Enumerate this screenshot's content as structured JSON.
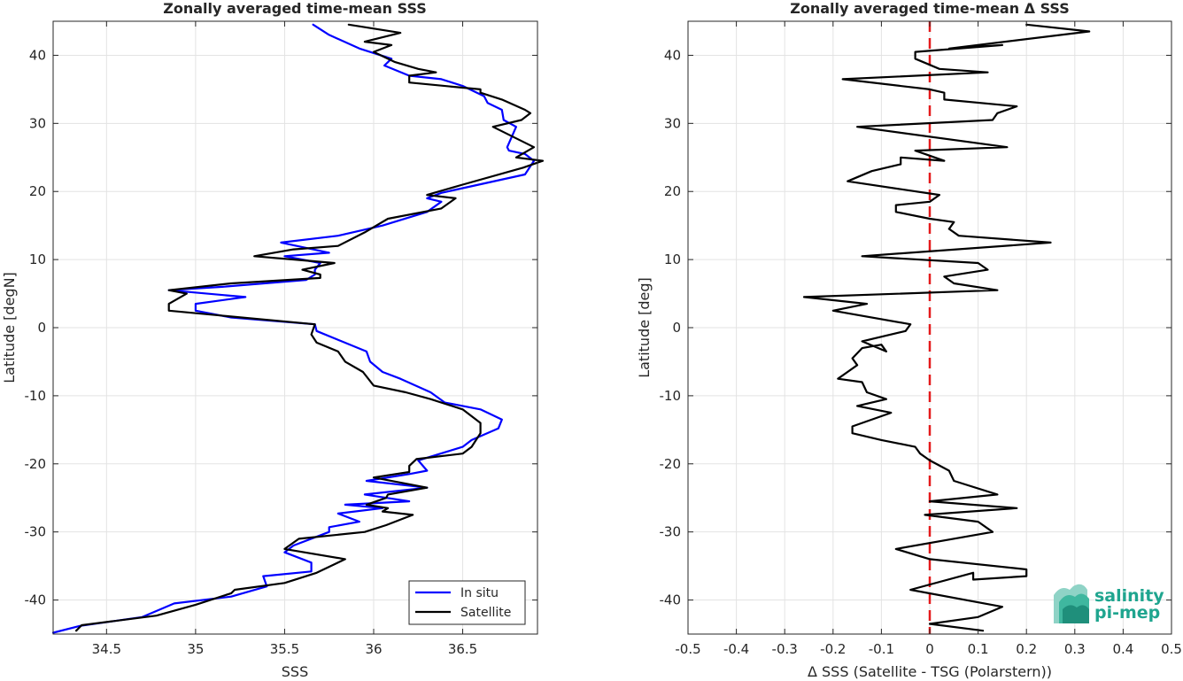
{
  "chart_data": [
    {
      "type": "line",
      "title": "Zonally averaged time-mean SSS",
      "xlabel": "SSS",
      "ylabel": "Latitude [degN]",
      "xlim": [
        34.2,
        36.92
      ],
      "ylim": [
        -45,
        45
      ],
      "xticks": [
        34.5,
        35,
        35.5,
        36,
        36.5
      ],
      "xtick_labels": [
        "34.5",
        "35",
        "35.5",
        "36",
        "36.5"
      ],
      "yticks": [
        -40,
        -30,
        -20,
        -10,
        0,
        10,
        20,
        30,
        40
      ],
      "ytick_labels": [
        "-40",
        "-30",
        "-20",
        "-10",
        "0",
        "10",
        "20",
        "30",
        "40"
      ],
      "grid": true,
      "legend": "bottom-right",
      "series": [
        {
          "name": "In situ",
          "color": "#0000ff",
          "points": [
            [
              34.2,
              -44.8
            ],
            [
              34.35,
              -43.8
            ],
            [
              34.7,
              -42.5
            ],
            [
              34.88,
              -40.5
            ],
            [
              35.2,
              -39.5
            ],
            [
              35.4,
              -38.0
            ],
            [
              35.38,
              -36.5
            ],
            [
              35.65,
              -35.8
            ],
            [
              35.65,
              -34.5
            ],
            [
              35.5,
              -33.0
            ],
            [
              35.55,
              -32.0
            ],
            [
              35.75,
              -30.0
            ],
            [
              35.75,
              -29.3
            ],
            [
              35.92,
              -28.5
            ],
            [
              35.8,
              -27.3
            ],
            [
              36.05,
              -26.5
            ],
            [
              35.84,
              -26.0
            ],
            [
              36.2,
              -25.5
            ],
            [
              35.95,
              -24.5
            ],
            [
              36.3,
              -23.5
            ],
            [
              35.96,
              -22.5
            ],
            [
              36.2,
              -21.5
            ],
            [
              36.3,
              -21.0
            ],
            [
              36.25,
              -19.5
            ],
            [
              36.5,
              -17.5
            ],
            [
              36.55,
              -16.5
            ],
            [
              36.7,
              -14.8
            ],
            [
              36.72,
              -13.5
            ],
            [
              36.6,
              -12.0
            ],
            [
              36.4,
              -11.0
            ],
            [
              36.32,
              -9.5
            ],
            [
              36.15,
              -7.5
            ],
            [
              36.05,
              -6.5
            ],
            [
              35.98,
              -5.0
            ],
            [
              35.96,
              -3.5
            ],
            [
              35.82,
              -2.0
            ],
            [
              35.68,
              -0.5
            ],
            [
              35.67,
              0.5
            ],
            [
              35.2,
              1.5
            ],
            [
              35.0,
              2.5
            ],
            [
              35.0,
              3.5
            ],
            [
              35.28,
              4.5
            ],
            [
              34.85,
              5.5
            ],
            [
              35.15,
              6.0
            ],
            [
              35.62,
              7.0
            ],
            [
              35.67,
              7.8
            ],
            [
              35.67,
              8.5
            ],
            [
              35.7,
              9.5
            ],
            [
              35.5,
              10.5
            ],
            [
              35.75,
              11.0
            ],
            [
              35.48,
              12.5
            ],
            [
              35.8,
              13.5
            ],
            [
              36.05,
              15.0
            ],
            [
              36.3,
              17.0
            ],
            [
              36.38,
              18.5
            ],
            [
              36.3,
              19.0
            ],
            [
              36.38,
              19.8
            ],
            [
              36.85,
              22.5
            ],
            [
              36.9,
              24.5
            ],
            [
              36.85,
              25.5
            ],
            [
              36.76,
              26.0
            ],
            [
              36.75,
              26.5
            ],
            [
              36.8,
              29.5
            ],
            [
              36.73,
              30.5
            ],
            [
              36.72,
              32.0
            ],
            [
              36.64,
              33.0
            ],
            [
              36.62,
              34.0
            ],
            [
              36.5,
              35.5
            ],
            [
              36.38,
              36.5
            ],
            [
              36.2,
              37.0
            ],
            [
              36.06,
              38.5
            ],
            [
              36.1,
              39.5
            ],
            [
              35.92,
              41.0
            ],
            [
              35.75,
              43.0
            ],
            [
              35.66,
              44.5
            ]
          ]
        },
        {
          "name": "Satellite",
          "color": "#000000",
          "points": [
            [
              34.33,
              -44.5
            ],
            [
              34.36,
              -43.7
            ],
            [
              34.78,
              -42.3
            ],
            [
              35.0,
              -40.7
            ],
            [
              35.2,
              -39.0
            ],
            [
              35.22,
              -38.5
            ],
            [
              35.5,
              -37.5
            ],
            [
              35.68,
              -36.0
            ],
            [
              35.84,
              -34.0
            ],
            [
              35.5,
              -32.5
            ],
            [
              35.58,
              -31.0
            ],
            [
              35.95,
              -30.0
            ],
            [
              36.07,
              -29.0
            ],
            [
              36.22,
              -27.5
            ],
            [
              36.05,
              -27.0
            ],
            [
              36.08,
              -26.5
            ],
            [
              35.96,
              -26.0
            ],
            [
              36.07,
              -25.0
            ],
            [
              36.08,
              -24.5
            ],
            [
              36.3,
              -23.5
            ],
            [
              36.0,
              -22.0
            ],
            [
              36.2,
              -21.2
            ],
            [
              36.2,
              -20.3
            ],
            [
              36.24,
              -19.3
            ],
            [
              36.5,
              -18.5
            ],
            [
              36.55,
              -17.5
            ],
            [
              36.6,
              -15.5
            ],
            [
              36.6,
              -14.0
            ],
            [
              36.5,
              -12.0
            ],
            [
              36.32,
              -10.5
            ],
            [
              36.18,
              -9.5
            ],
            [
              36.0,
              -8.5
            ],
            [
              35.94,
              -6.5
            ],
            [
              35.84,
              -5.0
            ],
            [
              35.8,
              -3.5
            ],
            [
              35.68,
              -2.2
            ],
            [
              35.65,
              -1.0
            ],
            [
              35.67,
              0.5
            ],
            [
              34.85,
              2.5
            ],
            [
              34.85,
              3.5
            ],
            [
              34.95,
              5.0
            ],
            [
              34.85,
              5.5
            ],
            [
              35.2,
              6.5
            ],
            [
              35.7,
              7.3
            ],
            [
              35.7,
              7.8
            ],
            [
              35.6,
              8.5
            ],
            [
              35.78,
              9.5
            ],
            [
              35.33,
              10.5
            ],
            [
              35.55,
              11.5
            ],
            [
              35.8,
              12.0
            ],
            [
              35.95,
              14.0
            ],
            [
              36.08,
              16.0
            ],
            [
              36.38,
              17.5
            ],
            [
              36.46,
              19.0
            ],
            [
              36.3,
              19.5
            ],
            [
              36.5,
              21.0
            ],
            [
              36.84,
              23.5
            ],
            [
              36.95,
              24.5
            ],
            [
              36.8,
              25.0
            ],
            [
              36.9,
              26.5
            ],
            [
              36.67,
              29.5
            ],
            [
              36.83,
              30.5
            ],
            [
              36.88,
              31.5
            ],
            [
              36.85,
              32.0
            ],
            [
              36.72,
              33.5
            ],
            [
              36.6,
              34.5
            ],
            [
              36.6,
              35.0
            ],
            [
              36.2,
              36.0
            ],
            [
              36.2,
              37.0
            ],
            [
              36.35,
              37.5
            ],
            [
              36.25,
              38.0
            ],
            [
              36.12,
              39.0
            ],
            [
              36.0,
              40.5
            ],
            [
              36.1,
              41.5
            ],
            [
              35.95,
              42.0
            ],
            [
              36.15,
              43.3
            ],
            [
              35.86,
              44.5
            ]
          ]
        }
      ]
    },
    {
      "type": "line",
      "title": "Zonally averaged time-mean Δ SSS",
      "xlabel": "Δ SSS (Satellite - TSG (Polarstern))",
      "ylabel": "Latitude [deg]",
      "xlim": [
        -0.5,
        0.5
      ],
      "ylim": [
        -45,
        45
      ],
      "xticks": [
        -0.5,
        -0.4,
        -0.3,
        -0.2,
        -0.1,
        0,
        0.1,
        0.2,
        0.3,
        0.4,
        0.5
      ],
      "xtick_labels": [
        "-0.5",
        "-0.4",
        "-0.3",
        "-0.2",
        "-0.1",
        "0",
        "0.1",
        "0.2",
        "0.3",
        "0.4",
        "0.5"
      ],
      "yticks": [
        -40,
        -30,
        -20,
        -10,
        0,
        10,
        20,
        30,
        40
      ],
      "ytick_labels": [
        "-40",
        "-30",
        "-20",
        "-10",
        "0",
        "10",
        "20",
        "30",
        "40"
      ],
      "grid": true,
      "reference_line": {
        "x": 0,
        "color": "#e41a1c",
        "style": "dashed"
      },
      "series": [
        {
          "color": "#000000",
          "points": [
            [
              0.11,
              -44.5
            ],
            [
              0.0,
              -43.5
            ],
            [
              0.1,
              -42.5
            ],
            [
              0.15,
              -41.0
            ],
            [
              -0.04,
              -38.5
            ],
            [
              0.09,
              -36.0
            ],
            [
              0.09,
              -37.0
            ],
            [
              0.2,
              -36.5
            ],
            [
              0.2,
              -35.5
            ],
            [
              0.0,
              -34.0
            ],
            [
              -0.07,
              -32.5
            ],
            [
              0.13,
              -30.0
            ],
            [
              0.1,
              -28.5
            ],
            [
              -0.01,
              -27.5
            ],
            [
              0.18,
              -26.5
            ],
            [
              0.0,
              -25.5
            ],
            [
              0.14,
              -24.5
            ],
            [
              0.05,
              -22.5
            ],
            [
              0.04,
              -21.0
            ],
            [
              0.0,
              -19.5
            ],
            [
              -0.02,
              -18.5
            ],
            [
              -0.03,
              -17.5
            ],
            [
              -0.1,
              -16.5
            ],
            [
              -0.16,
              -15.5
            ],
            [
              -0.16,
              -14.5
            ],
            [
              -0.08,
              -12.5
            ],
            [
              -0.15,
              -11.5
            ],
            [
              -0.09,
              -10.5
            ],
            [
              -0.13,
              -9.5
            ],
            [
              -0.14,
              -8.0
            ],
            [
              -0.19,
              -7.5
            ],
            [
              -0.17,
              -6.5
            ],
            [
              -0.15,
              -5.5
            ],
            [
              -0.16,
              -4.5
            ],
            [
              -0.14,
              -3.0
            ],
            [
              -0.1,
              -2.5
            ],
            [
              -0.09,
              -3.5
            ],
            [
              -0.14,
              -2.0
            ],
            [
              -0.05,
              -0.5
            ],
            [
              -0.04,
              0.5
            ],
            [
              -0.2,
              2.5
            ],
            [
              -0.13,
              3.5
            ],
            [
              -0.26,
              4.5
            ],
            [
              0.14,
              5.5
            ],
            [
              0.05,
              6.5
            ],
            [
              0.03,
              7.5
            ],
            [
              0.12,
              8.5
            ],
            [
              0.1,
              9.5
            ],
            [
              -0.14,
              10.5
            ],
            [
              0.25,
              12.5
            ],
            [
              0.06,
              13.5
            ],
            [
              0.04,
              14.5
            ],
            [
              0.05,
              15.5
            ],
            [
              0.0,
              16.0
            ],
            [
              -0.07,
              17.0
            ],
            [
              -0.07,
              18.0
            ],
            [
              0.0,
              18.5
            ],
            [
              0.02,
              19.5
            ],
            [
              -0.17,
              21.5
            ],
            [
              -0.12,
              23.0
            ],
            [
              -0.06,
              24.0
            ],
            [
              -0.06,
              25.0
            ],
            [
              0.03,
              24.5
            ],
            [
              -0.03,
              26.0
            ],
            [
              0.16,
              26.5
            ],
            [
              -0.15,
              29.5
            ],
            [
              0.13,
              30.5
            ],
            [
              0.14,
              31.5
            ],
            [
              0.18,
              32.5
            ],
            [
              0.03,
              33.5
            ],
            [
              0.03,
              34.5
            ],
            [
              0.0,
              35.0
            ],
            [
              -0.18,
              36.5
            ],
            [
              0.12,
              37.5
            ],
            [
              0.02,
              38.0
            ],
            [
              -0.03,
              39.5
            ],
            [
              -0.03,
              40.5
            ],
            [
              0.15,
              41.5
            ],
            [
              0.04,
              41.0
            ],
            [
              0.33,
              43.5
            ],
            [
              0.2,
              44.5
            ]
          ]
        }
      ]
    }
  ],
  "legend": {
    "items": [
      {
        "label": "In situ",
        "color": "#0000ff"
      },
      {
        "label": "Satellite",
        "color": "#000000"
      }
    ]
  },
  "logo": {
    "line1": "salinity",
    "line2": "pi-mep",
    "color": "#1fa58f"
  }
}
